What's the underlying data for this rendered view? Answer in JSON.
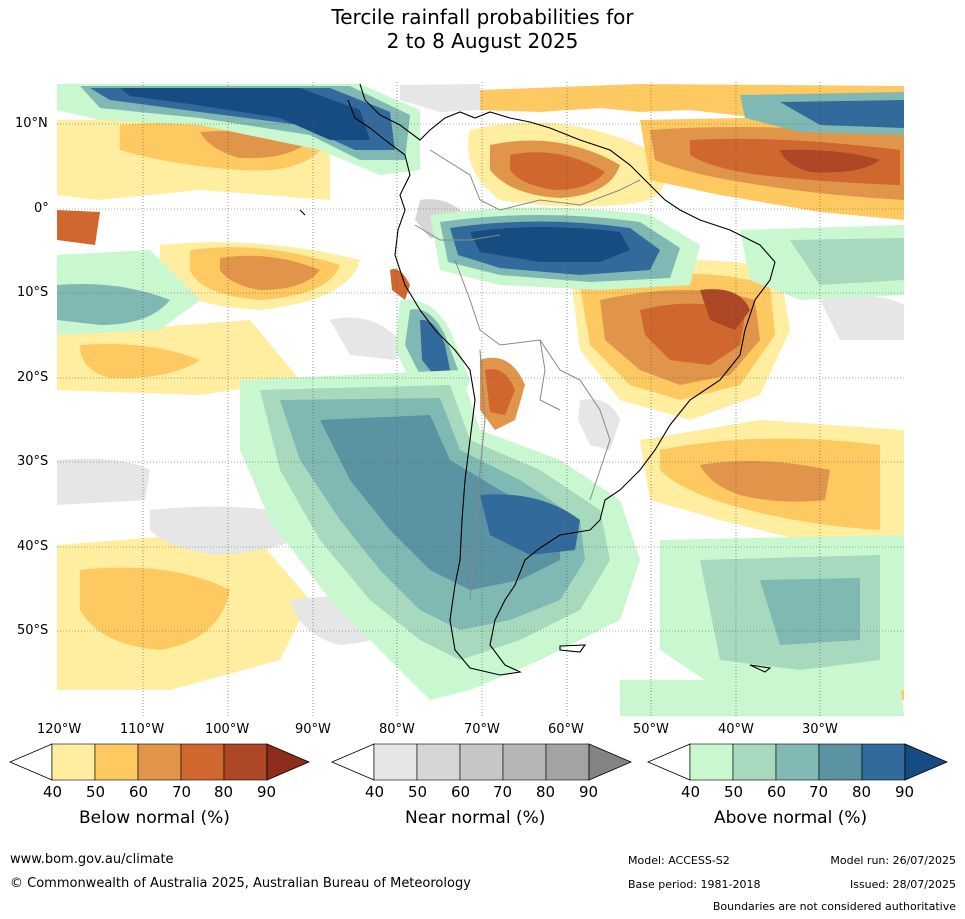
{
  "title": {
    "line1": "Tercile rainfall probabilities for",
    "line2": "2 to 8 August 2025"
  },
  "map": {
    "lat_labels": [
      "10°N",
      "0°",
      "10°S",
      "20°S",
      "30°S",
      "40°S",
      "50°S"
    ],
    "lon_labels": [
      "120°W",
      "110°W",
      "100°W",
      "90°W",
      "80°W",
      "70°W",
      "60°W",
      "50°W",
      "40°W",
      "30°W"
    ]
  },
  "colorbars": {
    "below": {
      "title": "Below normal (%)",
      "ticks": [
        "40",
        "50",
        "60",
        "70",
        "80",
        "90"
      ],
      "colors": [
        "#ffeda0",
        "#fec960",
        "#e0954a",
        "#d0672f",
        "#ae4726",
        "#8d2d1c"
      ]
    },
    "near": {
      "title": "Near normal (%)",
      "ticks": [
        "40",
        "50",
        "60",
        "70",
        "80",
        "90"
      ],
      "colors": [
        "#e6e6e6",
        "#d6d6d6",
        "#c6c6c6",
        "#b6b6b6",
        "#a3a3a3",
        "#838383"
      ]
    },
    "above": {
      "title": "Above normal (%)",
      "ticks": [
        "40",
        "50",
        "60",
        "70",
        "80",
        "90"
      ],
      "colors": [
        "#c9f7cf",
        "#a6d9bd",
        "#80b8b4",
        "#5b93a3",
        "#336a9c",
        "#174c82"
      ]
    }
  },
  "footer": {
    "url": "www.bom.gov.au/climate",
    "copyright": "© Commonwealth of Australia 2025, Australian Bureau of Meteorology",
    "model": "Model: ACCESS-S2",
    "base_period": "Base period: 1981-2018",
    "model_run": "Model run: 26/07/2025",
    "issued": "Issued: 28/07/2025",
    "disclaimer": "Boundaries are not considered authoritative"
  }
}
